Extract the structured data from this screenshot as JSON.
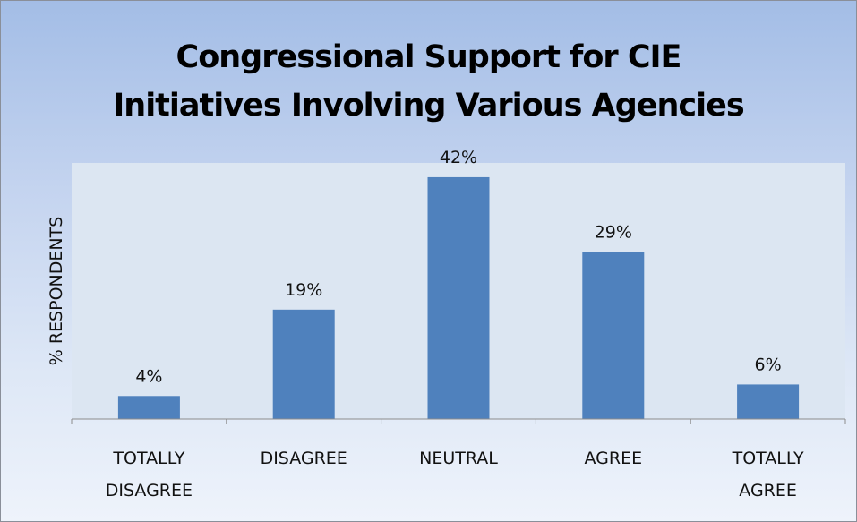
{
  "chart_data": {
    "type": "bar",
    "title": [
      "Congressional Support for CIE",
      "Initiatives Involving Various Agencies"
    ],
    "ylabel": "% RESPONDENTS",
    "xlabel": "",
    "categories": [
      [
        "TOTALLY",
        "DISAGREE"
      ],
      [
        "DISAGREE"
      ],
      [
        "NEUTRAL"
      ],
      [
        "AGREE"
      ],
      [
        "TOTALLY",
        "AGREE"
      ]
    ],
    "values": [
      4,
      19,
      42,
      29,
      6
    ],
    "data_labels": [
      "4%",
      "19%",
      "42%",
      "29%",
      "6%"
    ],
    "bar_color": "#4f81bd",
    "grid": false,
    "legend": "none"
  }
}
